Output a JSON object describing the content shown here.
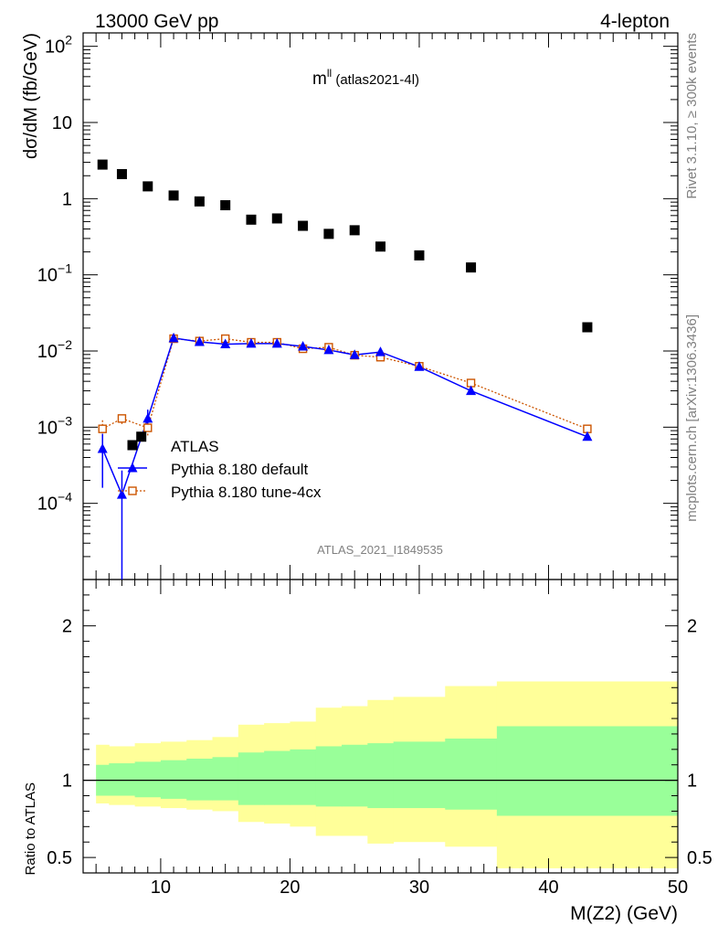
{
  "header": {
    "left": "13000 GeV pp",
    "right": "4-lepton",
    "plot_label_main": "m",
    "plot_label_sup": "ll",
    "plot_label_sub": " (atlas2021-4l)",
    "analysis_id": "ATLAS_2021_I1849535"
  },
  "side": {
    "rivet": "Rivet 3.1.10, ≥ 300k events",
    "mcplots": "mcplots.cern.ch [arXiv:1306.3436]"
  },
  "colors": {
    "data": "#000000",
    "default": "#0000ff",
    "tune": "#cc5500",
    "band_inner": "#99ff99",
    "band_outer": "#ffff99"
  },
  "chart_data": [
    {
      "type": "scatter",
      "title": "",
      "ylabel": "dσ/dM (fb/GeV)",
      "xlim": [
        4,
        50
      ],
      "ylim": [
        1e-05,
        150
      ],
      "log_y": true,
      "y_tick_values": [
        0.0001,
        0.001,
        0.01,
        0.1,
        1,
        10,
        100
      ],
      "y_tick_labels": [
        {
          "base": "10",
          "exp": "−4"
        },
        {
          "base": "10",
          "exp": "−3"
        },
        {
          "base": "10",
          "exp": "−2"
        },
        {
          "base": "10",
          "exp": "−1"
        },
        {
          "base": "1",
          "exp": ""
        },
        {
          "base": "10",
          "exp": ""
        },
        {
          "base": "10",
          "exp": "2"
        }
      ],
      "legend_position": "lower-left",
      "series": [
        {
          "name": "ATLAS",
          "marker": "square",
          "x": [
            5.5,
            7,
            9,
            11,
            13,
            15,
            17,
            19,
            21,
            23,
            25,
            27,
            30,
            34,
            43
          ],
          "y": [
            2.8,
            2.1,
            1.45,
            1.1,
            0.92,
            0.82,
            0.53,
            0.55,
            0.44,
            0.345,
            0.385,
            0.235,
            0.18,
            0.125,
            0.0205
          ],
          "extra_points": [
            {
              "x": 8.5,
              "y": 0.00075
            }
          ]
        },
        {
          "name": "Pythia 8.180 default",
          "marker": "triangle",
          "x": [
            5.5,
            7,
            9,
            11,
            13,
            15,
            17,
            19,
            21,
            23,
            25,
            27,
            30,
            34,
            43
          ],
          "y": [
            0.00052,
            0.00013,
            0.0013,
            0.0148,
            0.0132,
            0.0123,
            0.0125,
            0.0125,
            0.0115,
            0.0103,
            0.0089,
            0.0097,
            0.0062,
            0.003,
            0.00075
          ],
          "err_low": [
            0.00036,
            0.00013,
            0.0003,
            0.0006,
            0.0004,
            0.0004,
            0.0004,
            0.0004,
            0.0004,
            0.0004,
            0.0003,
            0.0003,
            0.0002,
            0.0002,
            5e-05
          ],
          "err_high": [
            0.0003,
            0.00014,
            0.0004,
            0.0006,
            0.0004,
            0.0004,
            0.0004,
            0.0004,
            0.0004,
            0.0004,
            0.0003,
            0.0003,
            0.0002,
            0.0002,
            5e-05
          ]
        },
        {
          "name": "Pythia 8.180 tune-4cx",
          "marker": "open-square",
          "x": [
            5.5,
            7,
            9,
            11,
            13,
            15,
            17,
            19,
            21,
            23,
            25,
            27,
            30,
            34,
            43
          ],
          "y": [
            0.00095,
            0.0013,
            0.00098,
            0.0145,
            0.0135,
            0.0145,
            0.013,
            0.013,
            0.0107,
            0.0112,
            0.0088,
            0.0083,
            0.0063,
            0.0038,
            0.00095
          ],
          "err_low": [
            0.0002,
            0.0002,
            0.0002,
            0.0005,
            0.0004,
            0.0004,
            0.0004,
            0.0004,
            0.0004,
            0.0004,
            0.0003,
            0.0003,
            0.0002,
            0.0002,
            5e-05
          ],
          "err_high": [
            0.0003,
            0.0002,
            0.0002,
            0.0005,
            0.0004,
            0.0004,
            0.0004,
            0.0004,
            0.0004,
            0.0004,
            0.0003,
            0.0003,
            0.0002,
            0.0002,
            5e-05
          ]
        }
      ]
    },
    {
      "type": "area",
      "title": "",
      "ylabel": "Ratio to ATLAS",
      "xlabel": "M(Z2) (GeV)",
      "xlim": [
        4,
        50
      ],
      "ylim": [
        0.4,
        2.3
      ],
      "x_ticks": [
        10,
        20,
        30,
        40,
        50
      ],
      "y_ticks": [
        0.5,
        1,
        2
      ],
      "y_tick_labels": [
        "0.5",
        "1",
        "2"
      ],
      "reference_line": 1,
      "bins": {
        "edges": [
          5,
          6,
          8,
          10,
          12,
          14,
          16,
          18,
          20,
          22,
          24,
          26,
          28,
          32,
          36,
          50
        ],
        "inner_low": [
          0.9,
          0.9,
          0.89,
          0.88,
          0.87,
          0.87,
          0.84,
          0.84,
          0.84,
          0.83,
          0.83,
          0.82,
          0.82,
          0.81,
          0.77
        ],
        "inner_high": [
          1.1,
          1.11,
          1.12,
          1.13,
          1.14,
          1.15,
          1.18,
          1.19,
          1.2,
          1.22,
          1.23,
          1.24,
          1.25,
          1.27,
          1.35
        ],
        "outer_low": [
          0.85,
          0.84,
          0.83,
          0.82,
          0.81,
          0.8,
          0.73,
          0.72,
          0.7,
          0.64,
          0.64,
          0.59,
          0.6,
          0.57,
          0.43
        ],
        "outer_high": [
          1.23,
          1.22,
          1.24,
          1.25,
          1.26,
          1.28,
          1.36,
          1.37,
          1.38,
          1.47,
          1.48,
          1.52,
          1.54,
          1.61,
          1.64
        ]
      }
    }
  ]
}
